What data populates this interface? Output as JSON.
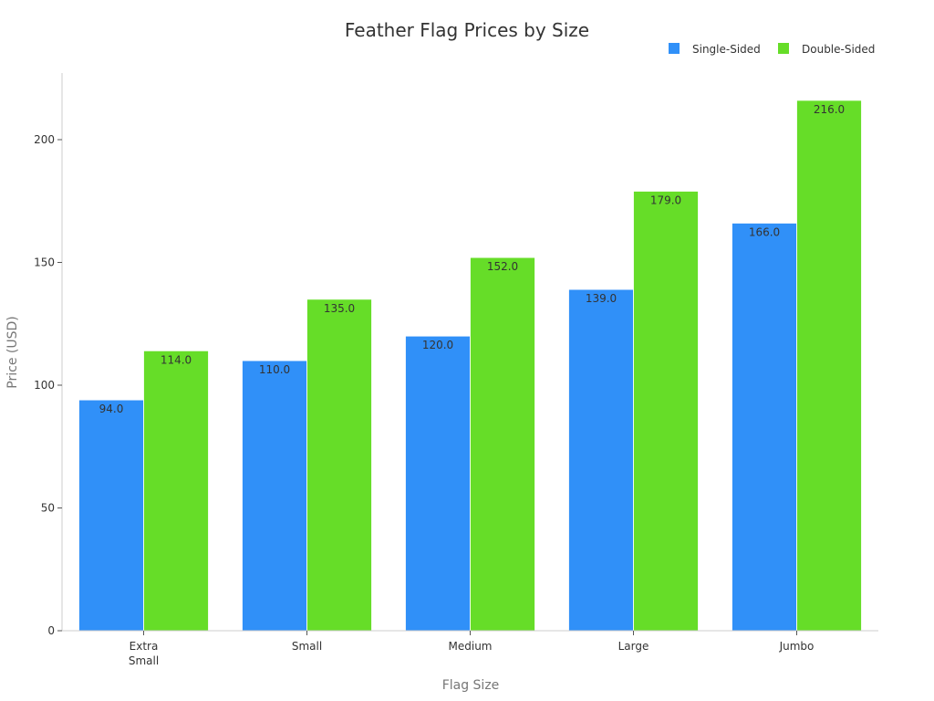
{
  "chart_data": {
    "type": "bar",
    "title": "Feather Flag Prices by Size",
    "xlabel": "Flag Size",
    "ylabel": "Price (USD)",
    "categories": [
      "Extra Small",
      "Small",
      "Medium",
      "Large",
      "Jumbo"
    ],
    "category_lines": [
      [
        "Extra",
        "Small"
      ],
      [
        "Small"
      ],
      [
        "Medium"
      ],
      [
        "Large"
      ],
      [
        "Jumbo"
      ]
    ],
    "series": [
      {
        "name": "Single-Sided",
        "color": "#3090f8",
        "values": [
          94.0,
          110.0,
          120.0,
          139.0,
          166.0
        ]
      },
      {
        "name": "Double-Sided",
        "color": "#66dd28",
        "values": [
          114.0,
          135.0,
          152.0,
          179.0,
          216.0
        ]
      }
    ],
    "ylim": [
      0,
      227
    ],
    "yticks": [
      0,
      50,
      100,
      150,
      200
    ],
    "grid": false,
    "legend_position": "top-right",
    "data_labels": true,
    "label_format": "0.0"
  }
}
